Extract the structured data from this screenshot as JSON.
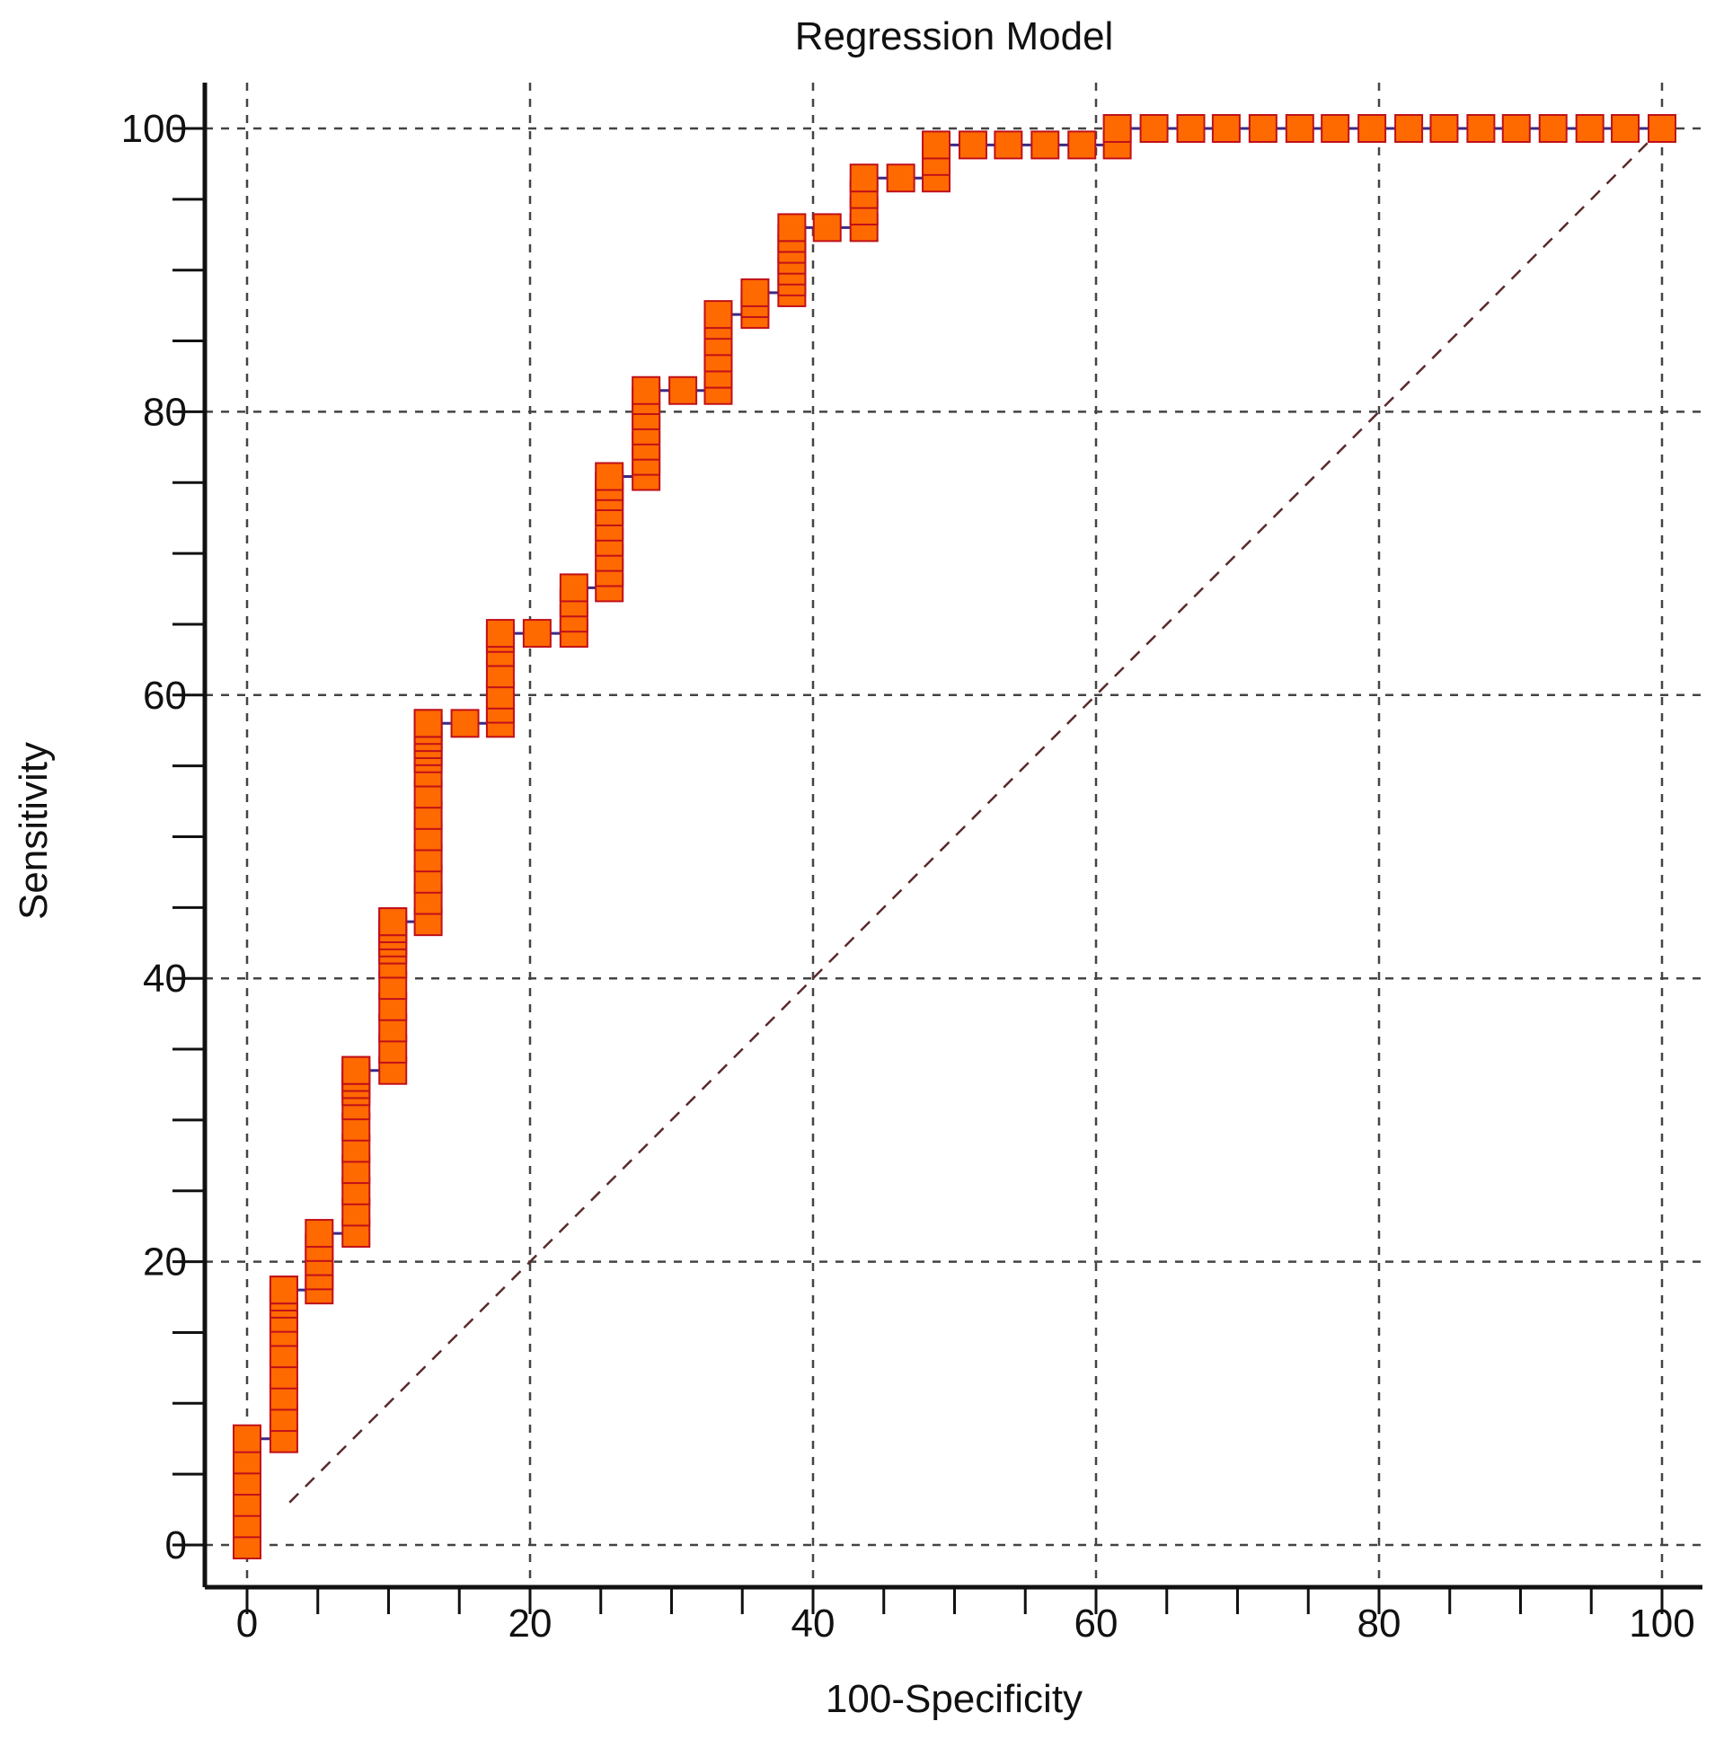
{
  "chart_data": {
    "type": "line",
    "title": "Regression Model",
    "xlabel": "100-Specificity",
    "ylabel": "Sensitivity",
    "xlim": [
      0,
      100
    ],
    "ylim": [
      0,
      100
    ],
    "x_ticks": [
      "0",
      "20",
      "40",
      "60",
      "80",
      "100"
    ],
    "y_ticks": [
      "0",
      "20",
      "40",
      "60",
      "80",
      "100"
    ],
    "grid": true,
    "legend": "none",
    "reference_line": {
      "from": [
        0,
        0
      ],
      "to": [
        100,
        100
      ],
      "style": "dashed"
    },
    "marker": "square",
    "colors": {
      "marker_fill": "#ff6a00",
      "marker_edge": "#c0101a",
      "line": "#3b2a86",
      "grid": "#444444",
      "reference": "#5a2a2a"
    },
    "series": [
      {
        "x": [
          0,
          0,
          0,
          0,
          0,
          0,
          2.6,
          2.6,
          2.6,
          2.6,
          2.6,
          2.6,
          2.6,
          2.6,
          2.6,
          2.6,
          2.6,
          5.1,
          5.1,
          5.1,
          5.1,
          5.1,
          7.7,
          7.7,
          7.7,
          7.7,
          7.7,
          7.7,
          7.7,
          7.7,
          7.7,
          7.7,
          7.7,
          7.7,
          10.3,
          10.3,
          10.3,
          10.3,
          10.3,
          10.3,
          10.3,
          10.3,
          10.3,
          10.3,
          10.3,
          10.3,
          12.8,
          12.8,
          12.8,
          12.8,
          12.8,
          12.8,
          12.8,
          12.8,
          12.8,
          12.8,
          12.8,
          12.8,
          12.8,
          12.8,
          12.8,
          15.4,
          17.9,
          17.9,
          17.9,
          17.9,
          17.9,
          17.9,
          17.9,
          20.5,
          23.1,
          23.1,
          23.1,
          23.1,
          25.6,
          25.6,
          25.6,
          25.6,
          25.6,
          25.6,
          25.6,
          25.6,
          25.6,
          28.2,
          28.2,
          28.2,
          28.2,
          28.2,
          28.2,
          28.2,
          30.8,
          33.3,
          33.3,
          33.3,
          33.3,
          33.3,
          33.3,
          35.9,
          35.9,
          35.9,
          38.5,
          38.5,
          38.5,
          38.5,
          38.5,
          38.5,
          38.5,
          41.0,
          43.6,
          43.6,
          43.6,
          43.6,
          46.2,
          48.7,
          48.7,
          48.7,
          51.3,
          53.8,
          56.4,
          59.0,
          61.5,
          61.5,
          64.1,
          66.7,
          69.2,
          71.8,
          74.4,
          76.9,
          79.5,
          82.1,
          84.6,
          87.2,
          89.7,
          92.3,
          94.9,
          97.4,
          100
        ],
        "y": [
          0,
          1.5,
          3.0,
          4.5,
          6.0,
          7.5,
          7.5,
          9.0,
          10.5,
          12.0,
          13.5,
          15.0,
          16.0,
          17.0,
          17.5,
          18.0,
          18.0,
          18.0,
          19.0,
          20.0,
          21.0,
          22.0,
          22.0,
          23.5,
          25.0,
          26.5,
          28.0,
          29.5,
          31.0,
          32.0,
          32.5,
          33.0,
          33.5,
          33.5,
          33.5,
          35.0,
          36.5,
          38.0,
          39.5,
          41.0,
          42.0,
          42.5,
          43.0,
          43.5,
          44.0,
          44.0,
          44.0,
          45.5,
          47.0,
          48.5,
          50.0,
          51.5,
          53.0,
          54.5,
          55.5,
          56.0,
          56.5,
          57.0,
          57.5,
          58.0,
          58.0,
          58.0,
          58.0,
          59.0,
          60.0,
          61.5,
          63.0,
          64.0,
          64.5,
          64.5,
          64.5,
          66.0,
          67.5,
          69.0,
          69.0,
          70.5,
          72.0,
          73.5,
          75.0,
          76.5,
          78.0,
          79.0,
          80.0,
          80.0,
          81.5,
          83.0,
          84.5,
          86.0,
          87.5,
          88.5,
          88.5,
          88.5,
          90.0,
          91.5,
          93.0,
          94.5,
          95.5,
          95.5,
          96.5,
          97.5,
          97.5,
          98.5,
          99.5,
          100.5,
          101.5,
          102.5,
          103.5,
          103.5,
          103.5,
          104.5,
          105.5,
          106.5,
          106.5,
          106.5,
          107.5,
          108.5,
          108.5,
          108.5,
          108.5,
          108.5,
          108.5,
          109.5,
          109.5,
          109.5,
          109.5,
          109.5,
          109.5,
          109.5,
          109.5,
          109.5,
          109.5,
          109.5,
          109.5,
          109.5,
          109.5,
          109.5,
          109.5
        ]
      }
    ]
  }
}
